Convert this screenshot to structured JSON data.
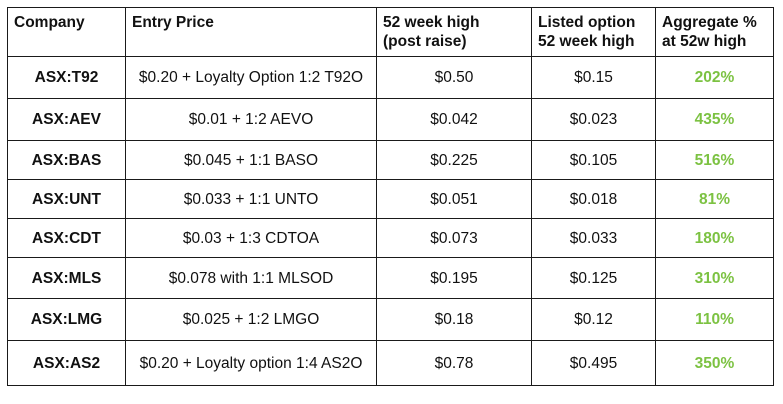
{
  "table": {
    "headers": {
      "company": "Company",
      "entry_price": "Entry Price",
      "week52_high_line1": "52 week high",
      "week52_high_line2": "(post raise)",
      "listed_option_line1": "Listed option",
      "listed_option_line2": "52 week high",
      "aggregate_line1": "Aggregate %",
      "aggregate_line2": "at 52w high"
    },
    "rows": [
      {
        "company": "ASX:T92",
        "entry_price": "$0.20 + Loyalty Option 1:2 T92O",
        "week52_high": "$0.50",
        "listed_option_high": "$0.15",
        "aggregate_pct": "202%"
      },
      {
        "company": "ASX:AEV",
        "entry_price": "$0.01 + 1:2 AEVO",
        "week52_high": "$0.042",
        "listed_option_high": "$0.023",
        "aggregate_pct": "435%"
      },
      {
        "company": "ASX:BAS",
        "entry_price": "$0.045 + 1:1 BASO",
        "week52_high": "$0.225",
        "listed_option_high": "$0.105",
        "aggregate_pct": "516%"
      },
      {
        "company": "ASX:UNT",
        "entry_price": "$0.033 + 1:1 UNTO",
        "week52_high": "$0.051",
        "listed_option_high": "$0.018",
        "aggregate_pct": "81%"
      },
      {
        "company": "ASX:CDT",
        "entry_price": "$0.03 + 1:3 CDTOA",
        "week52_high": "$0.073",
        "listed_option_high": "$0.033",
        "aggregate_pct": "180%"
      },
      {
        "company": "ASX:MLS",
        "entry_price": "$0.078 with 1:1 MLSOD",
        "week52_high": "$0.195",
        "listed_option_high": "$0.125",
        "aggregate_pct": "310%"
      },
      {
        "company": "ASX:LMG",
        "entry_price": "$0.025 + 1:2 LMGO",
        "week52_high": "$0.18",
        "listed_option_high": "$0.12",
        "aggregate_pct": "110%"
      },
      {
        "company": "ASX:AS2",
        "entry_price": "$0.20 + Loyalty option 1:4 AS2O",
        "week52_high": "$0.78",
        "listed_option_high": "$0.495",
        "aggregate_pct": "350%"
      }
    ],
    "colors": {
      "percent_text": "#7cc242",
      "border": "#1a1a1a",
      "text": "#111111"
    }
  }
}
